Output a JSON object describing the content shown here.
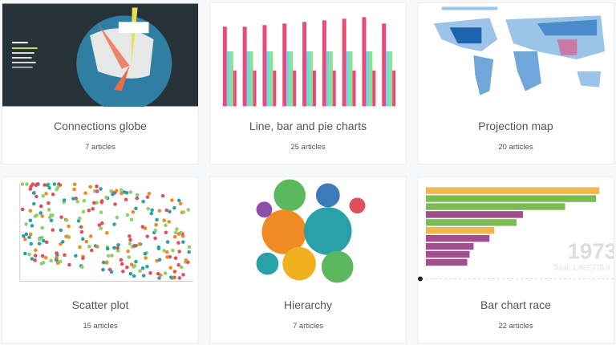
{
  "cards": [
    {
      "title": "Connections globe",
      "count": "7 articles"
    },
    {
      "title": "Line, bar and pie charts",
      "count": "25 articles"
    },
    {
      "title": "Projection map",
      "count": "20 articles"
    },
    {
      "title": "Scatter plot",
      "count": "15 articles"
    },
    {
      "title": "Hierarchy",
      "count": "7 articles"
    },
    {
      "title": "Bar chart race",
      "count": "22 articles",
      "year": "1973",
      "total": "Total: 1,467,775,8"
    }
  ],
  "colors": {
    "globe_bg": "#263138",
    "ocean": "#2f7fa3",
    "pink": "#ea4a7a",
    "cyan": "#6ad9e8",
    "green": "#8fe08f",
    "map_blue": "#1d63b0",
    "race_yellow": "#f0b84a",
    "race_green": "#7dbb58",
    "race_purple": "#a04e8c"
  }
}
